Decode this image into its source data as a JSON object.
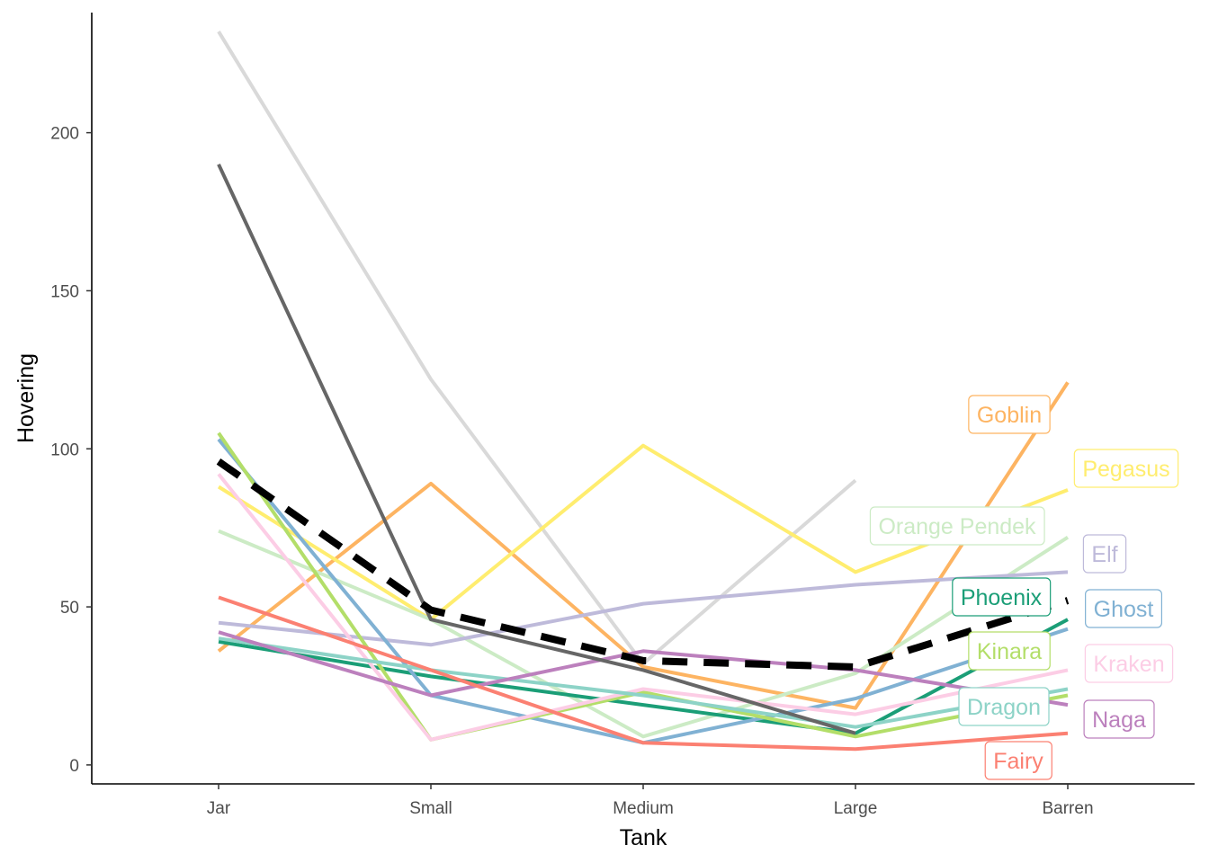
{
  "chart_data": {
    "type": "line",
    "title": "",
    "xlabel": "Tank",
    "ylabel": "Hovering",
    "categories": [
      "Jar",
      "Small",
      "Medium",
      "Large",
      "Barren"
    ],
    "ylim": [
      -6,
      238
    ],
    "yticks": [
      0,
      50,
      100,
      150,
      200
    ],
    "grid": false,
    "legend": "direct labels at right end of each line",
    "series": [
      {
        "name": "",
        "color": "#d9d9d9",
        "values": [
          232,
          122,
          32,
          90,
          null
        ]
      },
      {
        "name": "Goblin",
        "color": "#fdb462",
        "values": [
          36,
          89,
          31,
          18,
          121
        ]
      },
      {
        "name": "Pegasus",
        "color": "#ffed6f",
        "values": [
          88,
          46,
          101,
          61,
          87
        ]
      },
      {
        "name": "Orange Pendek",
        "color": "#ccebc5",
        "values": [
          74,
          46,
          9,
          29,
          72
        ]
      },
      {
        "name": "Elf",
        "color": "#bebada",
        "values": [
          45,
          38,
          51,
          57,
          61
        ]
      },
      {
        "name": "Phoenix",
        "color": "#1b9e77",
        "values": [
          39,
          28,
          19,
          10,
          46
        ]
      },
      {
        "name": "Ghost",
        "color": "#80b1d3",
        "values": [
          103,
          22,
          7,
          21,
          43
        ]
      },
      {
        "name": "Kinara",
        "color": "#b3de69",
        "values": [
          105,
          8,
          23,
          9,
          22
        ]
      },
      {
        "name": "Kraken",
        "color": "#fccde5",
        "values": [
          92,
          8,
          24,
          16,
          30
        ]
      },
      {
        "name": "Dragon",
        "color": "#8dd3c7",
        "values": [
          40,
          30,
          22,
          12,
          24
        ]
      },
      {
        "name": "Naga",
        "color": "#bc80bd",
        "values": [
          42,
          22,
          36,
          30,
          19
        ]
      },
      {
        "name": "Fairy",
        "color": "#fb8072",
        "values": [
          53,
          30,
          7,
          5,
          10
        ]
      },
      {
        "name": "",
        "color": "#666666",
        "values": [
          190,
          46,
          30,
          10,
          null
        ]
      },
      {
        "name": "",
        "color": "#000000",
        "dashed": true,
        "values": [
          96,
          49,
          33,
          31,
          52
        ]
      }
    ]
  }
}
